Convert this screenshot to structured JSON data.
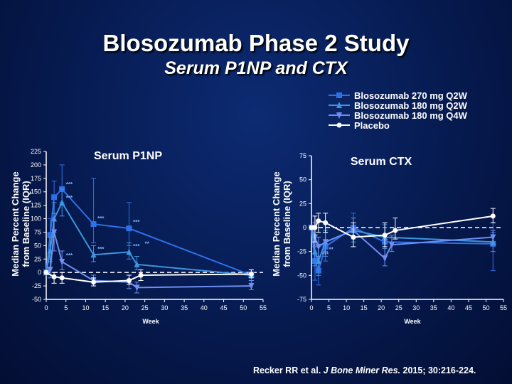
{
  "title": "Blosozumab Phase 2 Study",
  "subtitle": "Serum P1NP and CTX",
  "citation": {
    "pre": "Recker RR et al. ",
    "journal": "J Bone Miner Res.",
    "post": " 2015; 30:216-224."
  },
  "legend": [
    {
      "name": "Blosozumab 270 mg Q2W",
      "marker": "square"
    },
    {
      "name": "Blosozumab 180 mg Q2W",
      "marker": "triangle-up"
    },
    {
      "name": "Blosozumab 180 mg Q4W",
      "marker": "triangle-down"
    },
    {
      "name": "Placebo",
      "marker": "circle"
    }
  ],
  "colors": {
    "b270": "#2f6fe8",
    "b180q2w": "#3d95e0",
    "b180q4w": "#6f8ef0",
    "placebo": "#ffffff",
    "axis": "#ffffff",
    "sig": "#7fb2ff"
  },
  "chart_data": [
    {
      "type": "line",
      "title": "Serum P1NP",
      "xlabel": "Week",
      "ylabel": "Median Percent Change from Baseline (IQR)",
      "xlim": [
        0,
        55
      ],
      "ylim": [
        -50,
        225
      ],
      "x_ticks": [
        0,
        5,
        10,
        15,
        20,
        25,
        30,
        35,
        40,
        45,
        50,
        55
      ],
      "y_ticks": [
        -50,
        -25,
        0,
        25,
        50,
        75,
        100,
        125,
        150,
        175,
        200,
        225
      ],
      "reference_line": 0,
      "legend_position": "top-right",
      "series": [
        {
          "name": "Blosozumab 270 mg Q2W",
          "key": "b270",
          "x": [
            0,
            1,
            2,
            4,
            12,
            21,
            52
          ],
          "y": [
            0,
            70,
            140,
            155,
            90,
            82,
            -5
          ],
          "err_lo": [
            0,
            25,
            110,
            130,
            55,
            50,
            -20
          ],
          "err_hi": [
            0,
            100,
            170,
            200,
            175,
            130,
            5
          ]
        },
        {
          "name": "Blosozumab 180 mg Q2W",
          "key": "b180q2w",
          "x": [
            0,
            1,
            2,
            4,
            12,
            21,
            23,
            52
          ],
          "y": [
            0,
            40,
            100,
            130,
            33,
            38,
            15,
            -5
          ],
          "err_lo": [
            0,
            10,
            75,
            105,
            20,
            25,
            5,
            -15
          ],
          "err_hi": [
            0,
            65,
            130,
            155,
            50,
            55,
            30,
            5
          ]
        },
        {
          "name": "Blosozumab 180 mg Q4W",
          "key": "b180q4w",
          "x": [
            0,
            1,
            2,
            4,
            12,
            21,
            23,
            52
          ],
          "y": [
            0,
            5,
            75,
            20,
            -15,
            -18,
            -28,
            -25
          ],
          "err_lo": [
            0,
            -10,
            40,
            5,
            -25,
            -30,
            -38,
            -32
          ],
          "err_hi": [
            0,
            20,
            110,
            40,
            -5,
            -5,
            -18,
            -15
          ]
        },
        {
          "name": "Placebo",
          "key": "placebo",
          "x": [
            0,
            2,
            4,
            12,
            21,
            24,
            52
          ],
          "y": [
            0,
            -8,
            -10,
            -18,
            -15,
            -5,
            -3
          ],
          "err_lo": [
            0,
            -20,
            -20,
            -25,
            -22,
            -15,
            -10
          ],
          "err_hi": [
            0,
            0,
            0,
            -10,
            -5,
            5,
            5
          ]
        }
      ],
      "annotations": [
        {
          "x": 5,
          "y": 160,
          "text": "***"
        },
        {
          "x": 5,
          "y": 135,
          "text": "***"
        },
        {
          "x": 5,
          "y": 28,
          "text": "***"
        },
        {
          "x": 13,
          "y": 97,
          "text": "***"
        },
        {
          "x": 13,
          "y": 40,
          "text": "***"
        },
        {
          "x": 22,
          "y": 90,
          "text": "***"
        },
        {
          "x": 22,
          "y": 45,
          "text": "***"
        },
        {
          "x": 25,
          "y": 50,
          "text": "**"
        }
      ]
    },
    {
      "type": "line",
      "title": "Serum CTX",
      "xlabel": "Week",
      "ylabel": "Median Percent Change from Baseline (IQR)",
      "xlim": [
        0,
        55
      ],
      "ylim": [
        -75,
        75
      ],
      "x_ticks": [
        0,
        5,
        10,
        15,
        20,
        25,
        30,
        35,
        40,
        45,
        50,
        55
      ],
      "y_ticks": [
        -75,
        -50,
        -25,
        0,
        25,
        50,
        75
      ],
      "reference_line": 0,
      "series": [
        {
          "name": "Blosozumab 270 mg Q2W",
          "key": "b270",
          "x": [
            0,
            1,
            2,
            4,
            12,
            21,
            52
          ],
          "y": [
            0,
            -35,
            -45,
            -20,
            0,
            -15,
            -17
          ],
          "err_lo": [
            0,
            -55,
            -60,
            -35,
            -12,
            -30,
            -45
          ],
          "err_hi": [
            0,
            -20,
            -30,
            -5,
            15,
            0,
            5
          ]
        },
        {
          "name": "Blosozumab 180 mg Q2W",
          "key": "b180q2w",
          "x": [
            0,
            1,
            2,
            4,
            12,
            21,
            52
          ],
          "y": [
            0,
            -25,
            -35,
            -15,
            -3,
            -10,
            -15
          ],
          "err_lo": [
            0,
            -40,
            -50,
            -30,
            -15,
            -22,
            -25
          ],
          "err_hi": [
            0,
            -10,
            -20,
            -3,
            10,
            3,
            -5
          ]
        },
        {
          "name": "Blosozumab 180 mg Q4W",
          "key": "b180q4w",
          "x": [
            0,
            1,
            2,
            4,
            12,
            21,
            23,
            52
          ],
          "y": [
            0,
            -10,
            -20,
            -15,
            -3,
            -32,
            -18,
            -10
          ],
          "err_lo": [
            0,
            -20,
            -30,
            -25,
            -10,
            -40,
            -25,
            -18
          ],
          "err_hi": [
            0,
            5,
            -10,
            -5,
            10,
            -20,
            -8,
            -3
          ]
        },
        {
          "name": "Placebo",
          "key": "placebo",
          "x": [
            0,
            1,
            2,
            4,
            12,
            21,
            24,
            52
          ],
          "y": [
            0,
            0,
            7,
            5,
            -10,
            -8,
            -3,
            12
          ],
          "err_lo": [
            0,
            -15,
            -5,
            -5,
            -20,
            -20,
            -12,
            5
          ],
          "err_hi": [
            0,
            12,
            15,
            15,
            5,
            5,
            10,
            20
          ]
        }
      ],
      "annotations": [
        {
          "x": 3,
          "y": -30,
          "text": "***"
        },
        {
          "x": 5,
          "y": -25,
          "text": "**"
        }
      ]
    }
  ]
}
